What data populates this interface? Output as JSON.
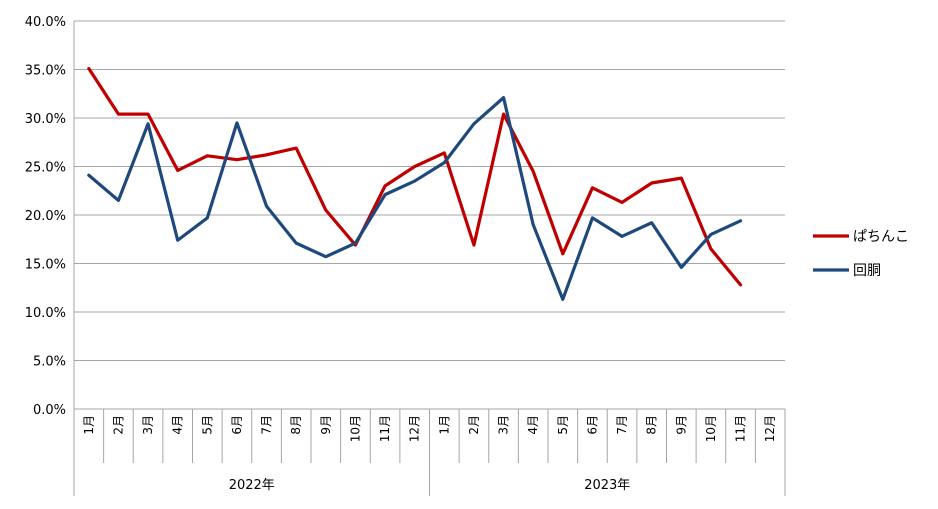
{
  "chart_data": {
    "type": "line",
    "title": "",
    "xlabel": "",
    "ylabel": "",
    "ylim": [
      0,
      40
    ],
    "y_ticks": [
      "0.0%",
      "5.0%",
      "10.0%",
      "15.0%",
      "20.0%",
      "25.0%",
      "30.0%",
      "35.0%",
      "40.0%"
    ],
    "y_tick_values": [
      0,
      5,
      10,
      15,
      20,
      25,
      30,
      35,
      40
    ],
    "grid": true,
    "legend_position": "right",
    "years": [
      {
        "label": "2022年",
        "months": [
          "1月",
          "2月",
          "3月",
          "4月",
          "5月",
          "6月",
          "7月",
          "8月",
          "9月",
          "10月",
          "11月",
          "12月"
        ]
      },
      {
        "label": "2023年",
        "months": [
          "1月",
          "2月",
          "3月",
          "4月",
          "5月",
          "6月",
          "7月",
          "8月",
          "9月",
          "10月",
          "11月",
          "12月"
        ]
      }
    ],
    "series": [
      {
        "name": "ぱちんこ",
        "color": "#c00000",
        "values": [
          35.1,
          30.4,
          30.4,
          24.6,
          26.1,
          25.7,
          26.2,
          26.9,
          20.5,
          16.9,
          23.0,
          25.0,
          26.4,
          16.9,
          30.4,
          24.5,
          16.0,
          22.8,
          21.3,
          23.3,
          23.8,
          16.5,
          12.8,
          null
        ]
      },
      {
        "name": "回胴",
        "color": "#1f497d",
        "values": [
          24.1,
          21.5,
          29.4,
          17.4,
          19.7,
          29.5,
          20.9,
          17.1,
          15.7,
          17.1,
          22.1,
          23.5,
          25.4,
          29.4,
          32.1,
          19.0,
          11.3,
          19.7,
          17.8,
          19.2,
          14.6,
          18.0,
          19.4,
          null
        ]
      }
    ]
  }
}
